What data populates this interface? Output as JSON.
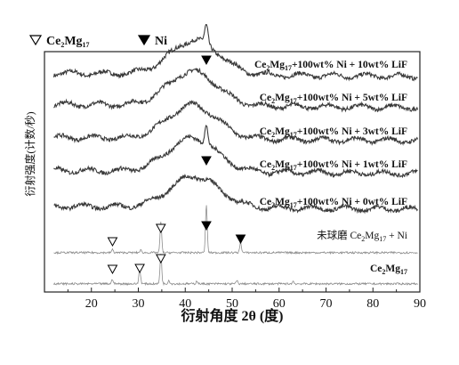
{
  "chart_data": {
    "type": "line",
    "xlabel": "衍射角度 2θ (度)",
    "ylabel": "衍射强度(计数/秒)",
    "xlim": [
      10,
      90
    ],
    "xticks": [
      20,
      30,
      40,
      50,
      60,
      70,
      80,
      90
    ],
    "grid": false,
    "legend": [
      {
        "symbol": "▽",
        "label_main": "Ce",
        "sub1": "2",
        "mid": "Mg",
        "sub2": "17",
        "tail": ""
      },
      {
        "symbol": "▼",
        "label_main": "Ni",
        "sub1": "",
        "mid": "",
        "sub2": "",
        "tail": ""
      }
    ],
    "legend_position": "top-left",
    "series": [
      {
        "name": "Ce2Mg17+100wt% Ni + 10wt% LiF",
        "label": {
          "main": "Ce",
          "sub1": "2",
          "mid": "Mg",
          "sub2": "17",
          "tail": "+100wt% Ni + 10wt% LiF"
        },
        "kind": "amorphous",
        "baseline": 0,
        "hump_center": 42,
        "hump_height": 1.2,
        "peaks": [
          {
            "x": 44.5,
            "h": 1.1
          }
        ],
        "markers": [
          {
            "x": 44.5,
            "type": "Ni"
          }
        ],
        "color": "#3a3a3a"
      },
      {
        "name": "Ce2Mg17+100wt% Ni + 5wt% LiF",
        "label": {
          "main": "Ce",
          "sub1": "2",
          "mid": "Mg",
          "sub2": "17",
          "tail": "+100wt% Ni + 5wt% LiF"
        },
        "kind": "amorphous",
        "baseline": 0,
        "hump_center": 41.5,
        "hump_height": 1.2,
        "peaks": [],
        "markers": [],
        "color": "#3a3a3a"
      },
      {
        "name": "Ce2Mg17+100wt% Ni + 3wt% LiF",
        "label": {
          "main": "Ce",
          "sub1": "2",
          "mid": "Mg",
          "sub2": "17",
          "tail": "+100wt% Ni + 3wt% LiF"
        },
        "kind": "amorphous",
        "baseline": 0,
        "hump_center": 41.5,
        "hump_height": 1.25,
        "peaks": [],
        "markers": [],
        "color": "#3a3a3a"
      },
      {
        "name": "Ce2Mg17+100wt% Ni + 1wt% LiF",
        "label": {
          "main": "Ce",
          "sub1": "2",
          "mid": "Mg",
          "sub2": "17",
          "tail": "+100wt% Ni + 1wt% LiF"
        },
        "kind": "amorphous",
        "baseline": 0,
        "hump_center": 41.5,
        "hump_height": 1.25,
        "peaks": [
          {
            "x": 44.5,
            "h": 1.2
          }
        ],
        "markers": [
          {
            "x": 44.5,
            "type": "Ni"
          }
        ],
        "color": "#3a3a3a"
      },
      {
        "name": "Ce2Mg17+100wt% Ni + 0wt% LiF",
        "label": {
          "main": "Ce",
          "sub1": "2",
          "mid": "Mg",
          "sub2": "17",
          "tail": "+100wt% Ni + 0wt% LiF"
        },
        "kind": "amorphous",
        "baseline": 0,
        "hump_center": 42,
        "hump_height": 1.25,
        "peaks": [],
        "markers": [],
        "color": "#3a3a3a"
      },
      {
        "name": "未球磨 Ce2Mg17 + Ni",
        "label": {
          "main": "未球磨 Ce",
          "sub1": "2",
          "mid": "Mg",
          "sub2": "17",
          "tail": " + Ni"
        },
        "kind": "crystalline",
        "baseline": 0,
        "peaks": [
          {
            "x": 24.5,
            "h": 0.1
          },
          {
            "x": 34.8,
            "h": 1.0
          },
          {
            "x": 44.5,
            "h": 1.6
          },
          {
            "x": 51.8,
            "h": 0.35
          },
          {
            "x": 30.5,
            "h": 0.08
          }
        ],
        "markers": [
          {
            "x": 24.5,
            "type": "Ce2Mg17"
          },
          {
            "x": 34.8,
            "type": "Ce2Mg17"
          },
          {
            "x": 44.5,
            "type": "Ni"
          },
          {
            "x": 51.8,
            "type": "Ni"
          }
        ],
        "color": "#8c8c8c"
      },
      {
        "name": "Ce2Mg17",
        "label": {
          "main": "Ce",
          "sub1": "2",
          "mid": "Mg",
          "sub2": "17",
          "tail": ""
        },
        "kind": "crystalline",
        "baseline": 0,
        "peaks": [
          {
            "x": 24.5,
            "h": 0.15
          },
          {
            "x": 30.3,
            "h": 0.5
          },
          {
            "x": 34.8,
            "h": 1.0
          },
          {
            "x": 36.5,
            "h": 0.12
          },
          {
            "x": 42.5,
            "h": 0.1
          },
          {
            "x": 51.0,
            "h": 0.1
          },
          {
            "x": 63.0,
            "h": 0.08
          }
        ],
        "markers": [
          {
            "x": 24.5,
            "type": "Ce2Mg17"
          },
          {
            "x": 30.3,
            "type": "Ce2Mg17"
          },
          {
            "x": 34.8,
            "type": "Ce2Mg17"
          }
        ],
        "color": "#8c8c8c"
      }
    ]
  }
}
